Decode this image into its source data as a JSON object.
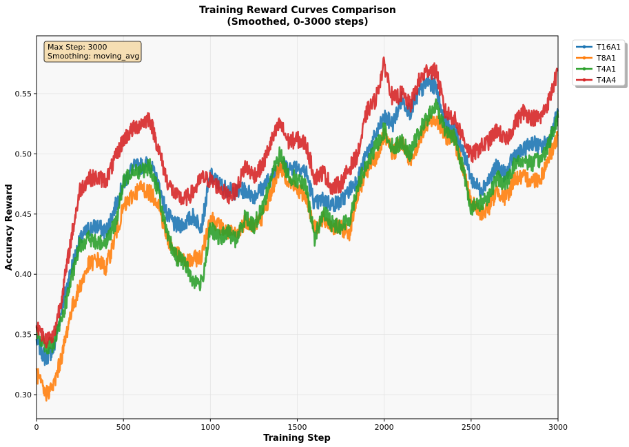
{
  "chart_data": {
    "type": "line",
    "title": "Training Reward Curves Comparison",
    "subtitle": "(Smoothed, 0-3000 steps)",
    "xlabel": "Training Step",
    "ylabel": "Accuracy Reward",
    "xlim": [
      0,
      3000
    ],
    "ylim": [
      0.28,
      0.598
    ],
    "xticks": [
      0,
      500,
      1000,
      1500,
      2000,
      2500,
      3000
    ],
    "yticks": [
      0.3,
      0.35,
      0.4,
      0.45,
      0.5,
      0.55
    ],
    "xtick_labels": [
      "0",
      "500",
      "1000",
      "1500",
      "2000",
      "2500",
      "3000"
    ],
    "ytick_labels": [
      "0.30",
      "0.35",
      "0.40",
      "0.45",
      "0.50",
      "0.55"
    ],
    "grid": true,
    "legend_position": "outside-top-right",
    "annotation": {
      "line1": "Max Step: 3000",
      "line2": "Smoothing: moving_avg"
    },
    "x": [
      0,
      50,
      100,
      150,
      200,
      250,
      300,
      350,
      400,
      450,
      500,
      550,
      600,
      650,
      700,
      750,
      800,
      850,
      900,
      950,
      1000,
      1050,
      1100,
      1150,
      1200,
      1250,
      1300,
      1350,
      1400,
      1450,
      1500,
      1550,
      1600,
      1650,
      1700,
      1750,
      1800,
      1850,
      1900,
      1950,
      2000,
      2050,
      2100,
      2150,
      2200,
      2250,
      2300,
      2350,
      2400,
      2450,
      2500,
      2550,
      2600,
      2650,
      2700,
      2750,
      2800,
      2850,
      2900,
      2950,
      3000
    ],
    "series": [
      {
        "name": "T16A1",
        "color": "#1f77b4",
        "values": [
          0.345,
          0.33,
          0.338,
          0.375,
          0.405,
          0.428,
          0.438,
          0.44,
          0.435,
          0.455,
          0.475,
          0.488,
          0.49,
          0.492,
          0.475,
          0.45,
          0.44,
          0.442,
          0.448,
          0.44,
          0.482,
          0.475,
          0.47,
          0.468,
          0.47,
          0.465,
          0.472,
          0.48,
          0.492,
          0.488,
          0.49,
          0.485,
          0.458,
          0.462,
          0.458,
          0.46,
          0.47,
          0.48,
          0.5,
          0.515,
          0.53,
          0.525,
          0.545,
          0.535,
          0.55,
          0.56,
          0.555,
          0.525,
          0.52,
          0.505,
          0.48,
          0.47,
          0.478,
          0.49,
          0.482,
          0.5,
          0.502,
          0.51,
          0.505,
          0.512,
          0.535
        ]
      },
      {
        "name": "T8A1",
        "color": "#ff7f0e",
        "values": [
          0.318,
          0.3,
          0.308,
          0.335,
          0.37,
          0.39,
          0.408,
          0.412,
          0.405,
          0.43,
          0.455,
          0.465,
          0.472,
          0.468,
          0.46,
          0.43,
          0.418,
          0.41,
          0.412,
          0.415,
          0.448,
          0.44,
          0.435,
          0.432,
          0.445,
          0.44,
          0.448,
          0.468,
          0.49,
          0.478,
          0.47,
          0.465,
          0.438,
          0.445,
          0.44,
          0.438,
          0.435,
          0.468,
          0.485,
          0.495,
          0.515,
          0.5,
          0.51,
          0.495,
          0.51,
          0.525,
          0.53,
          0.515,
          0.512,
          0.49,
          0.46,
          0.45,
          0.455,
          0.47,
          0.462,
          0.48,
          0.48,
          0.478,
          0.48,
          0.498,
          0.515
        ]
      },
      {
        "name": "T4A1",
        "color": "#2ca02c",
        "values": [
          0.35,
          0.34,
          0.342,
          0.365,
          0.395,
          0.425,
          0.43,
          0.425,
          0.428,
          0.44,
          0.475,
          0.488,
          0.485,
          0.49,
          0.47,
          0.432,
          0.415,
          0.41,
          0.395,
          0.392,
          0.438,
          0.43,
          0.435,
          0.428,
          0.448,
          0.44,
          0.455,
          0.48,
          0.5,
          0.482,
          0.478,
          0.472,
          0.43,
          0.452,
          0.442,
          0.44,
          0.445,
          0.475,
          0.49,
          0.505,
          0.52,
          0.505,
          0.51,
          0.5,
          0.518,
          0.53,
          0.54,
          0.52,
          0.515,
          0.49,
          0.455,
          0.458,
          0.465,
          0.48,
          0.475,
          0.492,
          0.495,
          0.492,
          0.495,
          0.51,
          0.53
        ]
      },
      {
        "name": "T4A4",
        "color": "#d62728",
        "values": [
          0.36,
          0.345,
          0.35,
          0.385,
          0.43,
          0.47,
          0.48,
          0.48,
          0.478,
          0.495,
          0.512,
          0.52,
          0.525,
          0.53,
          0.505,
          0.478,
          0.465,
          0.462,
          0.468,
          0.48,
          0.478,
          0.472,
          0.465,
          0.47,
          0.49,
          0.482,
          0.49,
          0.51,
          0.525,
          0.51,
          0.512,
          0.508,
          0.48,
          0.485,
          0.472,
          0.475,
          0.488,
          0.5,
          0.535,
          0.545,
          0.575,
          0.545,
          0.55,
          0.54,
          0.56,
          0.57,
          0.568,
          0.535,
          0.53,
          0.515,
          0.498,
          0.505,
          0.51,
          0.52,
          0.51,
          0.525,
          0.535,
          0.53,
          0.53,
          0.545,
          0.57
        ]
      }
    ]
  }
}
